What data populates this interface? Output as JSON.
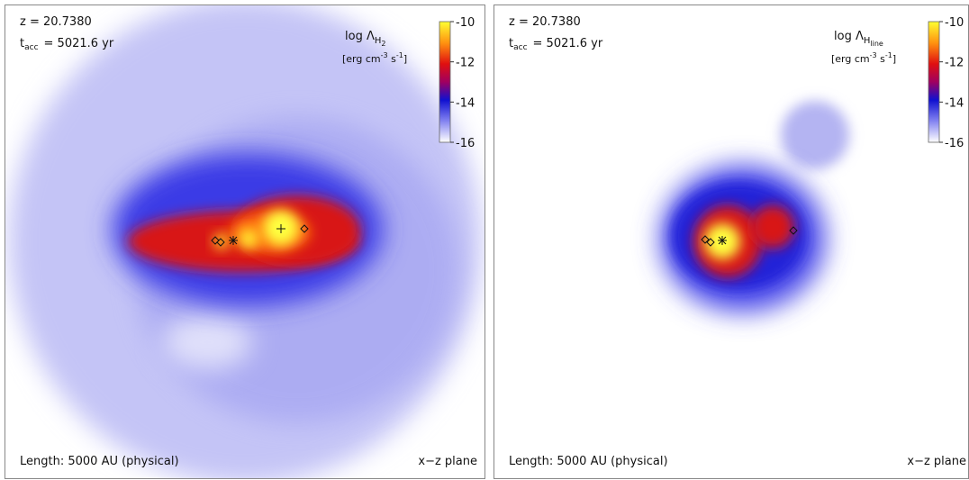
{
  "panels": [
    {
      "redshift": "z = 20.7380",
      "t_symbol": "t",
      "t_sub": "acc",
      "t_text": "= 5021.6 yr",
      "quantity": "log Λ",
      "quantity_sub": "H",
      "quantity_subsub": "2",
      "units": [
        "[erg cm",
        "-3",
        " s",
        "-1",
        "]"
      ],
      "colorbar_range": [
        -16,
        -10
      ],
      "colorbar_ticks": [
        -10,
        -12,
        -14,
        -16
      ],
      "length_label": "Length: 5000 AU (physical)",
      "plane_label": "x−z plane"
    },
    {
      "redshift": "z = 20.7380",
      "t_symbol": "t",
      "t_sub": "acc",
      "t_text": "= 5021.6 yr",
      "quantity": "log Λ",
      "quantity_sub": "H",
      "quantity_subsub": "line",
      "units": [
        "[erg cm",
        "-3",
        " s",
        "-1",
        "]"
      ],
      "colorbar_range": [
        -16,
        -10
      ],
      "colorbar_ticks": [
        -10,
        -12,
        -14,
        -16
      ],
      "length_label": "Length: 5000 AU (physical)",
      "plane_label": "x−z plane"
    }
  ]
}
